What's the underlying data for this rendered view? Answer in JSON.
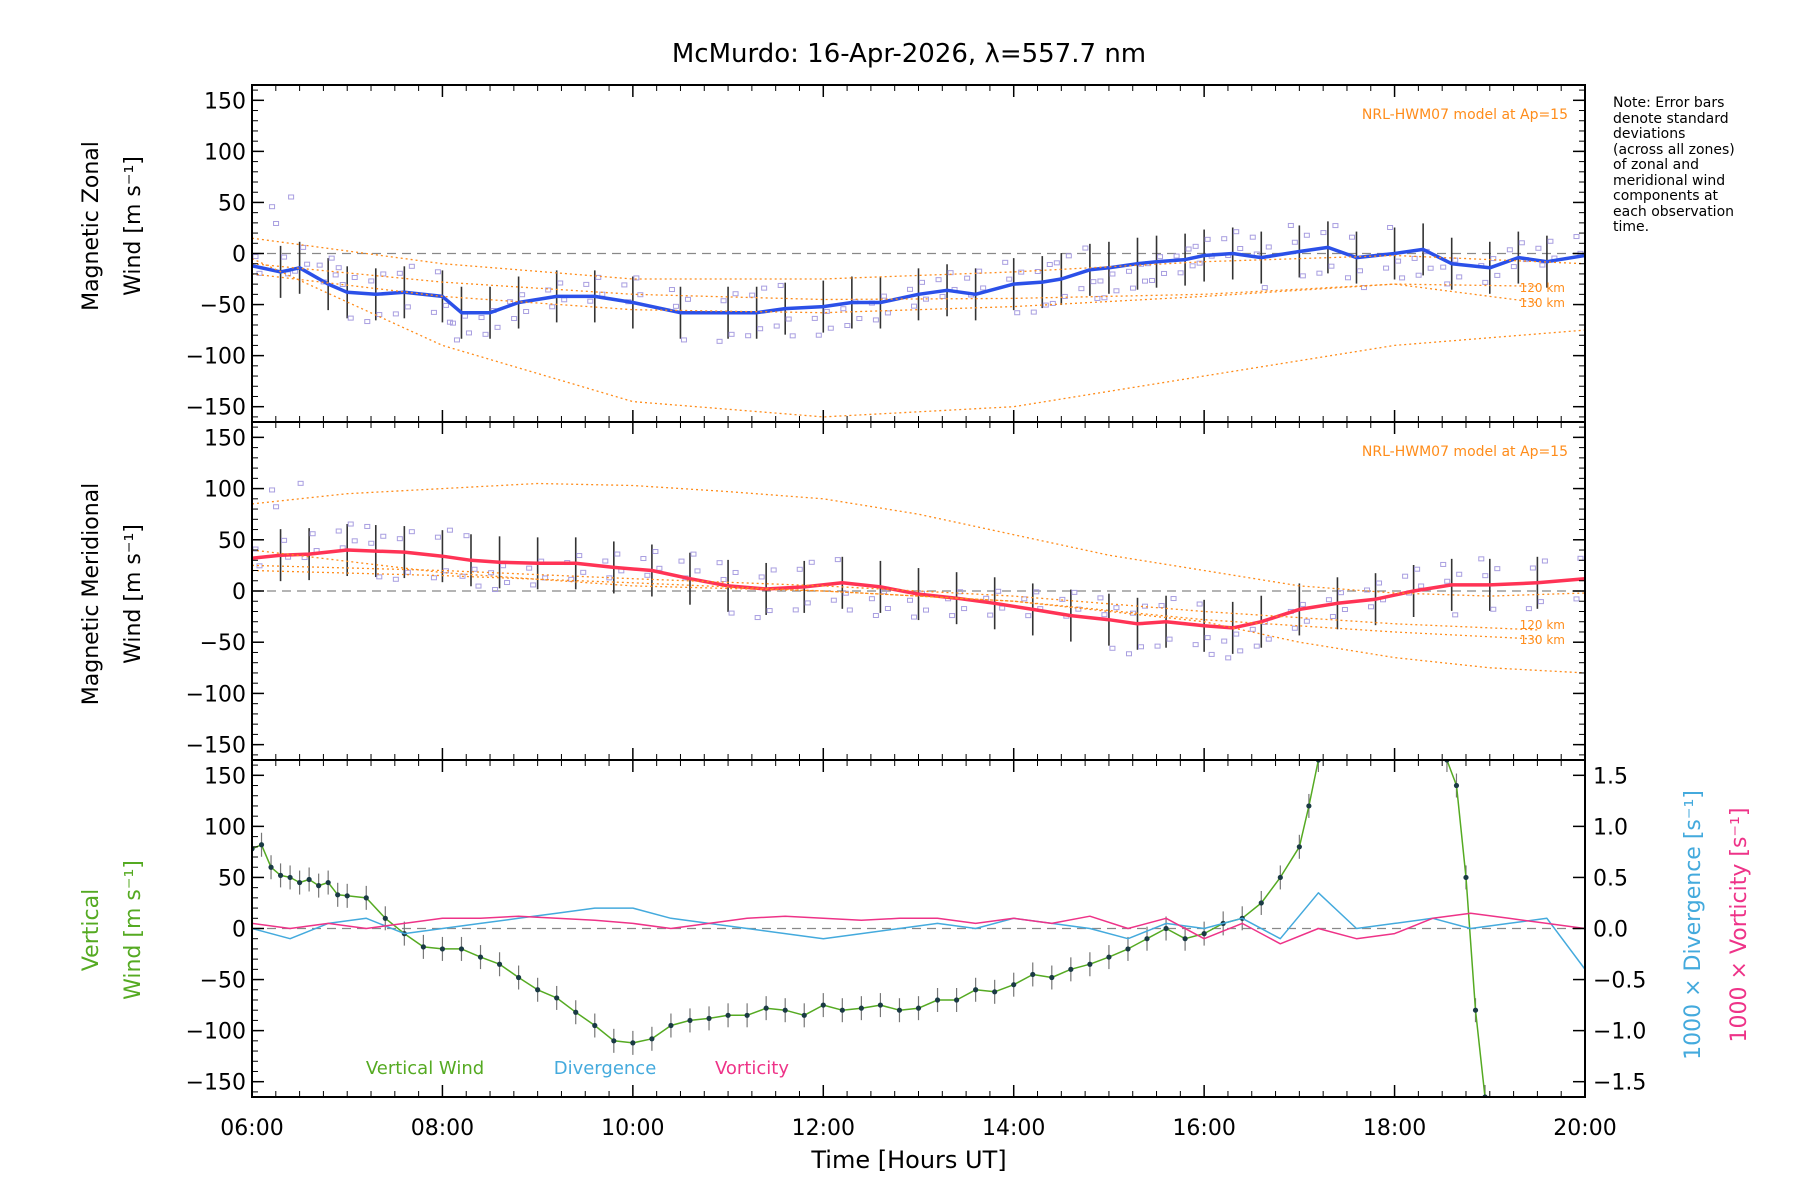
{
  "chart_data": [
    {
      "type": "line",
      "title": "McMurdo: 16-Apr-2026, λ=557.7 nm",
      "panel": "zonal",
      "ylabel_lines": [
        "Magnetic Zonal",
        "Wind [m s⁻¹]"
      ],
      "ylim": [
        -165,
        165
      ],
      "yticks": [
        -150,
        -100,
        -50,
        0,
        50,
        100,
        150
      ],
      "xlim": [
        6,
        20
      ],
      "model_label": "NRL-HWM07 model at Ap=15",
      "model_alt_labels": [
        "120 km",
        "130 km"
      ],
      "series": [
        {
          "name": "Zonal wind",
          "color": "#2b50e8",
          "x": [
            6.0,
            6.3,
            6.5,
            6.8,
            7.0,
            7.3,
            7.6,
            8.0,
            8.2,
            8.5,
            8.8,
            9.2,
            9.6,
            10.0,
            10.5,
            11.0,
            11.3,
            11.6,
            12.0,
            12.3,
            12.6,
            13.0,
            13.3,
            13.6,
            14.0,
            14.3,
            14.5,
            14.8,
            15.0,
            15.3,
            15.5,
            15.8,
            16.0,
            16.3,
            16.6,
            17.0,
            17.3,
            17.6,
            18.0,
            18.3,
            18.6,
            19.0,
            19.3,
            19.6,
            20.0
          ],
          "y": [
            -12,
            -18,
            -14,
            -30,
            -38,
            -40,
            -38,
            -42,
            -58,
            -58,
            -48,
            -42,
            -42,
            -48,
            -58,
            -58,
            -58,
            -54,
            -52,
            -48,
            -48,
            -40,
            -36,
            -40,
            -30,
            -28,
            -25,
            -16,
            -14,
            -10,
            -8,
            -6,
            -2,
            0,
            -4,
            2,
            6,
            -4,
            0,
            4,
            -10,
            -14,
            -4,
            -8,
            -2
          ]
        },
        {
          "name": "Model 120 km",
          "color": "#ff8c1a",
          "x": [
            6,
            8,
            10,
            12,
            14,
            16,
            18,
            19.5
          ],
          "y": [
            -20,
            -42,
            -55,
            -58,
            -52,
            -42,
            -30,
            -32
          ]
        },
        {
          "name": "Model 130 km",
          "color": "#ff8c1a",
          "x": [
            6,
            8,
            10,
            12,
            14,
            16,
            18,
            19.5
          ],
          "y": [
            -10,
            -28,
            -40,
            -45,
            -44,
            -40,
            -30,
            -48
          ]
        },
        {
          "name": "Model upper",
          "color": "#ff8c1a",
          "x": [
            6,
            8,
            10,
            12,
            14,
            16,
            18,
            20
          ],
          "y": [
            15,
            -10,
            -25,
            -25,
            -18,
            -8,
            -2,
            -10
          ]
        },
        {
          "name": "Model lower",
          "color": "#ff8c1a",
          "x": [
            6,
            8,
            10,
            12,
            14,
            16,
            18,
            20
          ],
          "y": [
            -5,
            -90,
            -145,
            -160,
            -150,
            -120,
            -90,
            -75
          ]
        }
      ]
    },
    {
      "type": "line",
      "panel": "meridional",
      "ylabel_lines": [
        "Magnetic Meridional",
        "Wind [m s⁻¹]"
      ],
      "ylim": [
        -165,
        165
      ],
      "yticks": [
        -150,
        -100,
        -50,
        0,
        50,
        100,
        150
      ],
      "xlim": [
        6,
        20
      ],
      "model_label": "NRL-HWM07 model at Ap=15",
      "model_alt_labels": [
        "120 km",
        "130 km"
      ],
      "series": [
        {
          "name": "Meridional wind",
          "color": "#ff3355",
          "x": [
            6.0,
            6.3,
            6.6,
            7.0,
            7.3,
            7.6,
            8.0,
            8.3,
            8.6,
            9.0,
            9.4,
            9.8,
            10.2,
            10.6,
            11.0,
            11.4,
            11.8,
            12.2,
            12.6,
            13.0,
            13.4,
            13.8,
            14.2,
            14.6,
            15.0,
            15.3,
            15.6,
            16.0,
            16.3,
            16.6,
            17.0,
            17.4,
            17.8,
            18.2,
            18.6,
            19.0,
            19.5,
            20.0
          ],
          "y": [
            32,
            35,
            36,
            40,
            39,
            38,
            34,
            30,
            28,
            27,
            27,
            23,
            20,
            12,
            5,
            2,
            4,
            8,
            4,
            -3,
            -7,
            -12,
            -18,
            -24,
            -28,
            -32,
            -30,
            -34,
            -36,
            -30,
            -18,
            -12,
            -8,
            0,
            6,
            6,
            8,
            12
          ]
        },
        {
          "name": "Model 120 km",
          "color": "#ff8c1a",
          "x": [
            6,
            8,
            10,
            12,
            14,
            16,
            18,
            19.5
          ],
          "y": [
            25,
            20,
            12,
            5,
            -5,
            -20,
            -32,
            -38
          ]
        },
        {
          "name": "Model 130 km",
          "color": "#ff8c1a",
          "x": [
            6,
            8,
            10,
            12,
            14,
            16,
            18,
            19.5
          ],
          "y": [
            20,
            15,
            8,
            0,
            -10,
            -28,
            -40,
            -47
          ]
        },
        {
          "name": "Model upper",
          "color": "#ff8c1a",
          "x": [
            6,
            7,
            8,
            9,
            10,
            11,
            12,
            13,
            14,
            15,
            16,
            17,
            18,
            19,
            20
          ],
          "y": [
            85,
            95,
            100,
            105,
            103,
            97,
            90,
            75,
            55,
            35,
            20,
            5,
            -2,
            -5,
            -2
          ]
        },
        {
          "name": "Model lower",
          "color": "#ff8c1a",
          "x": [
            6,
            8,
            10,
            12,
            14,
            16,
            17,
            18,
            19,
            20
          ],
          "y": [
            40,
            18,
            5,
            0,
            -10,
            -30,
            -50,
            -65,
            -75,
            -80
          ]
        }
      ]
    },
    {
      "type": "line",
      "panel": "vertical",
      "ylabel_lines": [
        "Vertical",
        "Wind [m s⁻¹]"
      ],
      "ylim": [
        -165,
        165
      ],
      "yticks": [
        -150,
        -100,
        -50,
        0,
        50,
        100,
        150
      ],
      "y2lim": [
        -1.65,
        1.65
      ],
      "y2ticks": [
        -1.5,
        -1.0,
        -0.5,
        0.0,
        0.5,
        1.0,
        1.5
      ],
      "y2labels": [
        "1000 × Divergence [s⁻¹]",
        "1000 × Vorticity [s⁻¹]"
      ],
      "xlabel": "Time [Hours UT]",
      "xlim": [
        6,
        20
      ],
      "xticks": [
        6,
        8,
        10,
        12,
        14,
        16,
        18,
        20
      ],
      "xticklabels": [
        "06:00",
        "08:00",
        "10:00",
        "12:00",
        "14:00",
        "16:00",
        "18:00",
        "20:00"
      ],
      "legend": [
        "Vertical Wind",
        "Divergence",
        "Vorticity"
      ],
      "series": [
        {
          "name": "Vertical Wind",
          "color": "#55aa22",
          "x": [
            6.0,
            6.1,
            6.2,
            6.3,
            6.4,
            6.5,
            6.6,
            6.7,
            6.8,
            6.9,
            7.0,
            7.2,
            7.4,
            7.6,
            7.8,
            8.0,
            8.2,
            8.4,
            8.6,
            8.8,
            9.0,
            9.2,
            9.4,
            9.6,
            9.8,
            10.0,
            10.2,
            10.4,
            10.6,
            10.8,
            11.0,
            11.2,
            11.4,
            11.6,
            11.8,
            12.0,
            12.2,
            12.4,
            12.6,
            12.8,
            13.0,
            13.2,
            13.4,
            13.6,
            13.8,
            14.0,
            14.2,
            14.4,
            14.6,
            14.8,
            15.0,
            15.2,
            15.4,
            15.6,
            15.8,
            16.0,
            16.2,
            16.4,
            16.6,
            16.8,
            17.0,
            17.1,
            17.2
          ],
          "y": [
            78,
            82,
            60,
            52,
            50,
            45,
            48,
            42,
            45,
            33,
            32,
            30,
            10,
            -5,
            -18,
            -20,
            -20,
            -28,
            -35,
            -48,
            -60,
            -68,
            -82,
            -95,
            -110,
            -112,
            -108,
            -95,
            -90,
            -88,
            -85,
            -85,
            -78,
            -80,
            -85,
            -75,
            -80,
            -78,
            -75,
            -80,
            -78,
            -70,
            -70,
            -60,
            -62,
            -55,
            -45,
            -48,
            -40,
            -35,
            -28,
            -20,
            -10,
            0,
            -10,
            -5,
            5,
            10,
            25,
            50,
            80,
            120,
            165
          ]
        },
        {
          "name": "Vertical Wind (late)",
          "color": "#55aa22",
          "x": [
            18.55,
            18.65,
            18.75,
            18.85,
            18.95
          ],
          "y": [
            165,
            140,
            50,
            -80,
            -165
          ]
        },
        {
          "name": "Divergence",
          "color": "#44aadd",
          "x": [
            6.0,
            6.4,
            6.8,
            7.2,
            7.6,
            8.0,
            8.4,
            8.8,
            9.2,
            9.6,
            10.0,
            10.4,
            10.8,
            11.2,
            11.6,
            12.0,
            12.4,
            12.8,
            13.2,
            13.6,
            14.0,
            14.4,
            14.8,
            15.2,
            15.6,
            16.0,
            16.4,
            16.8,
            17.2,
            17.6,
            18.0,
            18.4,
            18.8,
            19.2,
            19.6,
            20.0
          ],
          "y": [
            0.0,
            -0.1,
            0.05,
            0.1,
            -0.05,
            0.0,
            0.05,
            0.1,
            0.15,
            0.2,
            0.2,
            0.1,
            0.05,
            0.0,
            -0.05,
            -0.1,
            -0.05,
            0.0,
            0.05,
            0.0,
            0.1,
            0.05,
            0.0,
            -0.1,
            0.05,
            0.0,
            0.1,
            -0.1,
            0.35,
            0.0,
            0.05,
            0.1,
            0.0,
            0.05,
            0.1,
            -0.4
          ]
        },
        {
          "name": "Vorticity",
          "color": "#ee3388",
          "x": [
            6.0,
            6.4,
            6.8,
            7.2,
            7.6,
            8.0,
            8.4,
            8.8,
            9.2,
            9.6,
            10.0,
            10.4,
            10.8,
            11.2,
            11.6,
            12.0,
            12.4,
            12.8,
            13.2,
            13.6,
            14.0,
            14.4,
            14.8,
            15.2,
            15.6,
            16.0,
            16.4,
            16.8,
            17.2,
            17.6,
            18.0,
            18.4,
            18.8,
            19.2,
            19.6,
            20.0
          ],
          "y": [
            0.05,
            0.0,
            0.05,
            0.0,
            0.05,
            0.1,
            0.1,
            0.12,
            0.1,
            0.08,
            0.05,
            0.0,
            0.05,
            0.1,
            0.12,
            0.1,
            0.08,
            0.1,
            0.1,
            0.05,
            0.1,
            0.05,
            0.12,
            0.0,
            0.1,
            -0.1,
            0.05,
            -0.15,
            0.0,
            -0.1,
            -0.05,
            0.1,
            0.15,
            0.1,
            0.05,
            0.0
          ]
        }
      ]
    }
  ],
  "note": [
    "Note: Error bars",
    "denote standard",
    "deviations",
    "(across all zones)",
    "of zonal and",
    "meridional wind",
    "components at",
    "each observation",
    "time."
  ],
  "colors": {
    "zonal": "#2b50e8",
    "meridional": "#ff3355",
    "vertical": "#55aa22",
    "divergence": "#44aadd",
    "vorticity": "#ee3388",
    "model": "#ff8c1a",
    "scatter": "#a89ee0"
  }
}
